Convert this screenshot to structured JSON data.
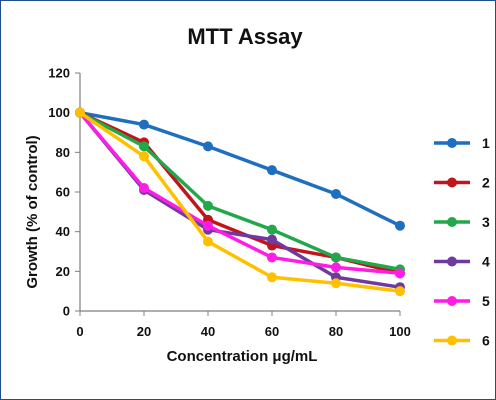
{
  "chart_data": {
    "type": "line",
    "title": "MTT Assay",
    "xlabel": "Concentration  μg/mL",
    "ylabel": "Growth (% of control)",
    "x": [
      0,
      20,
      40,
      60,
      80,
      100
    ],
    "xlim": [
      0,
      100
    ],
    "ylim": [
      0,
      120
    ],
    "x_ticks": [
      "0",
      "20",
      "40",
      "60",
      "80",
      "100"
    ],
    "y_ticks": [
      "0",
      "20",
      "40",
      "60",
      "80",
      "100",
      "120"
    ],
    "grid": false,
    "legend_position": "right",
    "series": [
      {
        "name": "1",
        "color": "#1f6fc0",
        "values": [
          100,
          94,
          83,
          71,
          59,
          43
        ]
      },
      {
        "name": "2",
        "color": "#c0151c",
        "values": [
          100,
          85,
          46,
          33,
          27,
          19
        ]
      },
      {
        "name": "3",
        "color": "#22a84a",
        "values": [
          100,
          83,
          53,
          41,
          27,
          21
        ]
      },
      {
        "name": "4",
        "color": "#6f3aa0",
        "values": [
          100,
          61,
          41,
          36,
          17,
          12
        ]
      },
      {
        "name": "5",
        "color": "#ff1ce6",
        "values": [
          100,
          62,
          43,
          27,
          22,
          19
        ]
      },
      {
        "name": "6",
        "color": "#ffc000",
        "values": [
          100,
          78,
          35,
          17,
          14,
          10
        ]
      }
    ]
  }
}
